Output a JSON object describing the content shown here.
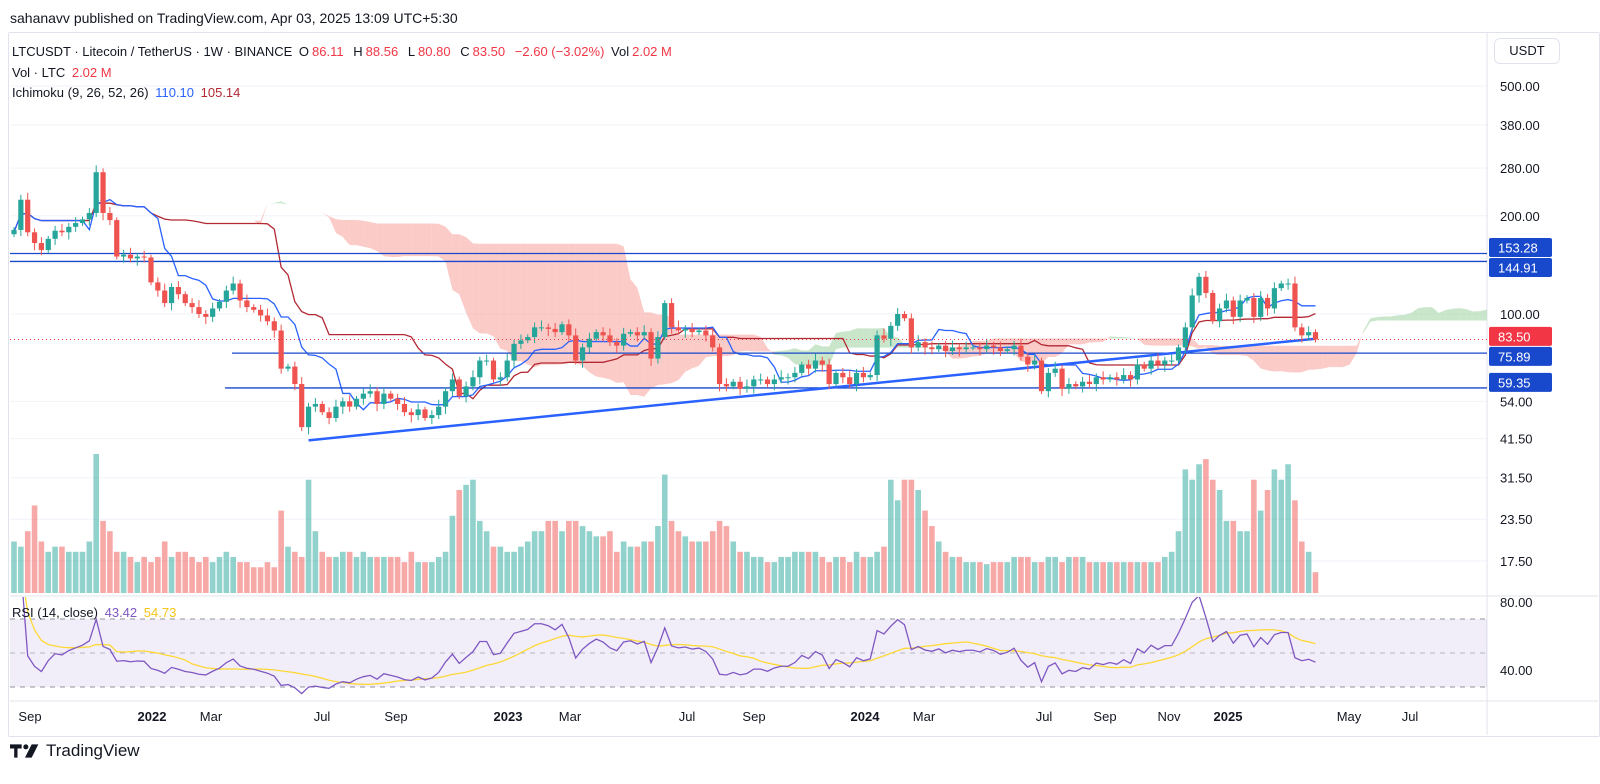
{
  "header": {
    "published": "sahanavv published on TradingView.com, Apr 03, 2025 13:09 UTC+5:30"
  },
  "legend": {
    "symbol": "LTCUSDT · Litecoin / TetherUS · 1W · BINANCE",
    "o_label": "O",
    "o": "86.11",
    "h_label": "H",
    "h": "88.56",
    "l_label": "L",
    "l": "80.80",
    "c_label": "C",
    "c": "83.50",
    "change": "−2.60 (−3.02%)",
    "vol_label": "Vol",
    "vol": "2.02 M",
    "vol_line_label": "Vol · LTC",
    "vol_line_value": "2.02 M",
    "ichimoku_label": "Ichimoku (9, 26, 52, 26)",
    "ichimoku_conv": "110.10",
    "ichimoku_base": "105.14",
    "rsi_label": "RSI (14, close)",
    "rsi_value": "43.42",
    "rsi_ma": "54.73"
  },
  "price_axis": {
    "currency": "USDT",
    "ticks": [
      "500.00",
      "380.00",
      "280.00",
      "200.00",
      "100.00",
      "54.00",
      "41.50",
      "31.50",
      "23.50",
      "17.50"
    ],
    "last_price": "83.50",
    "levels": [
      "153.28",
      "144.91",
      "75.89",
      "59.35"
    ]
  },
  "rsi_axis": {
    "ticks": [
      "80.00",
      "40.00"
    ]
  },
  "time_axis": {
    "labels": [
      {
        "t": "Sep",
        "bold": false
      },
      {
        "t": "2022",
        "bold": true
      },
      {
        "t": "Mar",
        "bold": false
      },
      {
        "t": "Jul",
        "bold": false
      },
      {
        "t": "Sep",
        "bold": false
      },
      {
        "t": "2023",
        "bold": true
      },
      {
        "t": "Mar",
        "bold": false
      },
      {
        "t": "Jul",
        "bold": false
      },
      {
        "t": "Sep",
        "bold": false
      },
      {
        "t": "2024",
        "bold": true
      },
      {
        "t": "Mar",
        "bold": false
      },
      {
        "t": "Jul",
        "bold": false
      },
      {
        "t": "Sep",
        "bold": false
      },
      {
        "t": "Nov",
        "bold": false
      },
      {
        "t": "2025",
        "bold": true
      },
      {
        "t": "May",
        "bold": false
      },
      {
        "t": "Jul",
        "bold": false
      }
    ]
  },
  "footer": {
    "brand": "TradingView"
  },
  "chart_data": {
    "type": "candlestick",
    "interval": "1W",
    "y_scale": "log",
    "start_date": "2021-08-16",
    "closes": [
      181,
      224,
      178,
      165,
      157,
      170,
      180,
      178,
      185,
      190,
      195,
      204,
      272,
      204,
      194,
      150,
      152,
      148,
      150,
      149,
      125,
      118,
      108,
      121,
      115,
      108,
      105,
      100,
      98,
      104,
      109,
      118,
      124,
      110,
      105,
      103,
      99,
      95,
      89,
      68,
      69,
      61,
      45,
      52,
      53,
      50,
      48,
      52,
      54,
      52,
      55,
      57,
      58,
      53,
      57,
      55,
      53,
      50,
      49,
      51,
      48,
      49,
      52,
      58,
      63,
      56,
      60,
      64,
      72,
      72,
      63,
      64,
      72,
      81,
      83,
      85,
      91,
      91,
      90,
      88,
      93,
      86,
      72,
      79,
      84,
      88,
      86,
      82,
      80,
      87,
      88,
      86,
      88,
      73,
      85,
      108,
      91,
      89,
      90,
      88,
      89,
      86,
      79,
      61,
      60,
      62,
      59,
      60,
      63,
      63,
      61,
      63,
      64,
      64,
      66,
      70,
      68,
      72,
      70,
      61,
      66,
      64,
      61,
      66,
      64,
      65,
      86,
      84,
      92,
      100,
      97,
      79,
      82,
      79,
      78,
      80,
      77,
      79,
      78,
      79,
      79,
      78,
      80,
      79,
      77,
      78,
      80,
      74,
      70,
      72,
      58,
      66,
      68,
      59,
      61,
      60,
      62,
      61,
      64,
      63,
      64,
      63,
      65,
      63,
      70,
      68,
      72,
      70,
      72,
      72,
      79,
      91,
      114,
      130,
      116,
      95,
      104,
      110,
      98,
      110,
      112,
      98,
      112,
      104,
      120,
      124,
      124,
      91,
      86,
      88,
      83.5
    ],
    "volumes_millions": [
      5,
      4.5,
      6,
      8.5,
      5,
      4,
      4.5,
      4.5,
      4,
      4,
      4,
      5,
      13.5,
      7,
      6,
      4,
      4,
      3.5,
      3,
      3.5,
      3,
      3.5,
      5,
      3.5,
      4,
      4,
      3.5,
      3,
      3.5,
      3,
      3.5,
      4,
      3.5,
      3,
      3,
      2.5,
      2.5,
      3,
      2.5,
      8,
      4.5,
      4,
      3.5,
      11,
      6,
      4,
      3.5,
      3.5,
      4,
      4,
      3.5,
      4,
      3.5,
      3.5,
      3.5,
      3.5,
      3.5,
      3,
      4,
      3,
      3,
      3,
      3.5,
      4,
      7.5,
      10,
      10.5,
      11,
      7,
      6,
      4.5,
      4.5,
      4,
      4,
      4.5,
      5,
      6,
      6,
      7,
      7,
      6,
      7,
      7,
      6.5,
      6,
      5.5,
      5.5,
      6,
      4,
      5,
      4.5,
      4.5,
      5,
      5,
      6.5,
      11.5,
      7,
      6,
      5.5,
      5,
      5,
      5,
      6,
      7,
      6.5,
      5,
      4,
      4,
      3.5,
      3.5,
      3,
      3,
      3.5,
      3.5,
      4,
      4,
      4,
      4,
      3.5,
      3,
      3.5,
      3.5,
      3,
      4,
      3.5,
      3.5,
      4,
      4.5,
      11,
      9,
      11,
      11,
      10,
      8,
      6.5,
      5,
      4,
      3.5,
      3.5,
      3,
      3,
      3,
      2.8,
      3,
      3,
      3,
      3.5,
      3.5,
      3.5,
      3,
      3,
      3.5,
      3.5,
      3,
      3.5,
      3.5,
      3.5,
      3,
      3,
      3,
      3,
      3,
      3,
      3,
      3,
      3,
      3,
      3,
      3.5,
      4,
      6,
      12,
      11,
      12.5,
      13,
      11,
      10,
      7,
      7,
      6,
      6,
      11,
      8,
      10,
      12,
      11,
      12.5,
      9,
      5,
      4,
      2.02
    ],
    "horizontal_levels": [
      153.28,
      144.91,
      75.89,
      59.35
    ],
    "trendline": {
      "from": {
        "date": "2022-06-13",
        "price": 41
      },
      "to": {
        "date": "2025-04-07",
        "price": 84
      }
    },
    "colors": {
      "up": "#26a69a",
      "down": "#ef5350",
      "level": "#1848cc",
      "trendline": "#2962ff",
      "conversion": "#2962ff",
      "base": "#b22833",
      "cloud_up": "#a5d6a7",
      "cloud_down": "#f8a8a4",
      "rsi": "#7e57c2",
      "rsi_ma": "#fdd835"
    },
    "indicators": {
      "ichimoku": [
        9,
        26,
        52,
        26
      ],
      "rsi_period": 14,
      "rsi_bands": [
        70,
        50,
        30
      ]
    }
  }
}
